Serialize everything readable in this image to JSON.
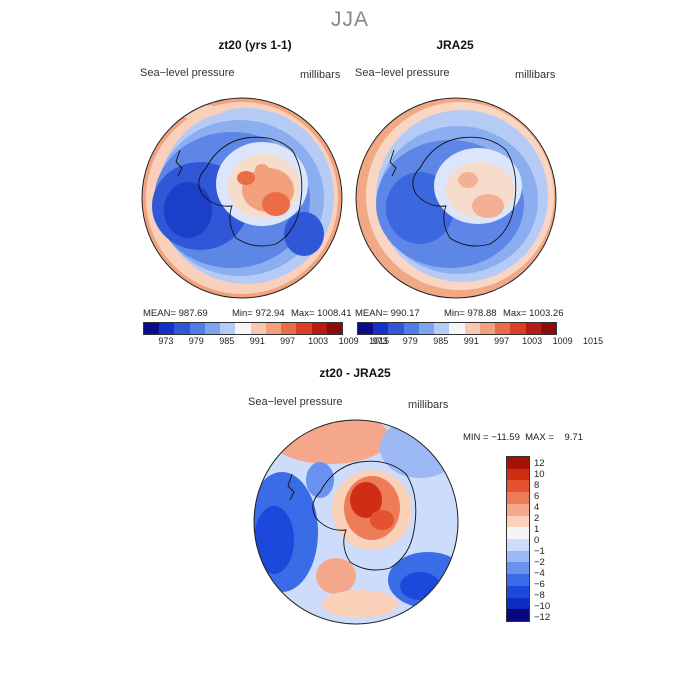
{
  "season": "JJA",
  "colors": {
    "levels12": [
      "#0b0b8c",
      "#1531c9",
      "#2f57d8",
      "#4f7de6",
      "#7ea3f0",
      "#b2cbf7",
      "#f6f6f4",
      "#f8c8b0",
      "#f3a07c",
      "#ea6d45",
      "#da3f23",
      "#b81b12",
      "#8a0c0c"
    ],
    "diff": [
      "#07077e",
      "#0d2cc0",
      "#1d48dc",
      "#3b6ce8",
      "#6892ef",
      "#9cb8f5",
      "#cddcfa",
      "#f5f5f5",
      "#fad1b9",
      "#f4a78b",
      "#ee7c58",
      "#e3532f",
      "#cf2e14",
      "#a61208"
    ]
  },
  "panels": [
    {
      "title": "zt20 (yrs 1-1)",
      "variable": "Sea−level pressure",
      "units": "millibars",
      "mean": "MEAN= 987.69",
      "min": "Min= 972.94",
      "max": "Max= 1008.41"
    },
    {
      "title": "JRA25",
      "variable": "Sea−level pressure",
      "units": "millibars",
      "mean": "MEAN= 990.17",
      "min": "Min= 978.88",
      "max": "Max= 1003.26"
    }
  ],
  "colorbar_labels": [
    "973",
    "979",
    "985",
    "991",
    "997",
    "1003",
    "1009",
    "1015"
  ],
  "difference": {
    "title": "zt20 - JRA25",
    "variable": "Sea−level pressure",
    "units": "millibars",
    "minmax": "MIN = −11.59  MAX =    9.71",
    "labels": [
      "12",
      "10",
      "8",
      "6",
      "4",
      "2",
      "1",
      "0",
      "−1",
      "−2",
      "−4",
      "−6",
      "−8",
      "−10",
      "−12"
    ]
  }
}
